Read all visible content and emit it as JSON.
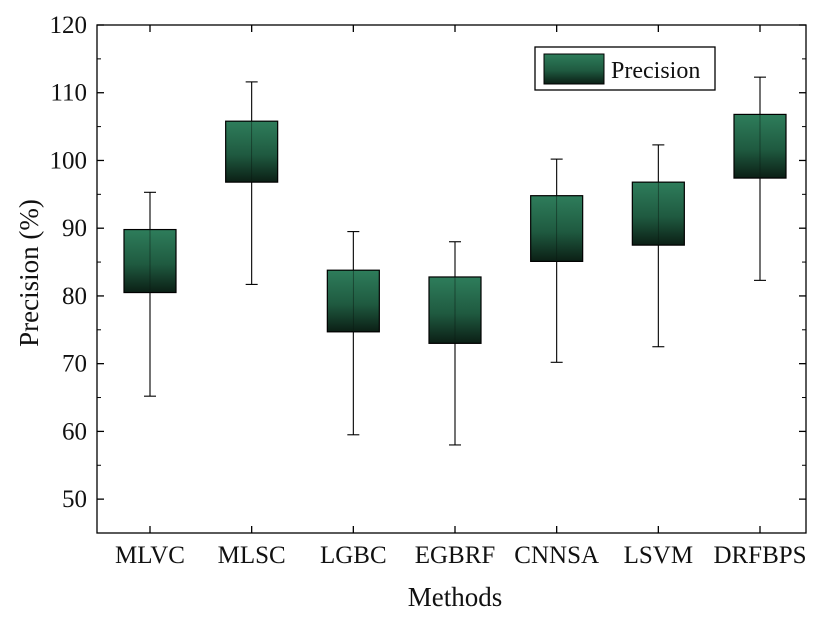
{
  "chart_data": {
    "type": "box",
    "xlabel": "Methods",
    "ylabel": "Precision (%)",
    "ylim": [
      45,
      120
    ],
    "yticks": [
      50,
      60,
      70,
      80,
      90,
      100,
      110,
      120
    ],
    "categories": [
      "MLVC",
      "MLSC",
      "LGBC",
      "EGBRF",
      "CNNSA",
      "LSVM",
      "DRFBPS"
    ],
    "series": [
      {
        "name": "Precision",
        "color_top": "#2e7d5b",
        "color_bottom": "#0b1f15",
        "boxes": [
          {
            "category": "MLVC",
            "whisker_low": 65.2,
            "box_low": 80.5,
            "box_high": 89.8,
            "whisker_high": 95.3
          },
          {
            "category": "MLSC",
            "whisker_low": 81.7,
            "box_low": 96.8,
            "box_high": 105.8,
            "whisker_high": 111.6
          },
          {
            "category": "LGBC",
            "whisker_low": 59.5,
            "box_low": 74.7,
            "box_high": 83.8,
            "whisker_high": 89.5
          },
          {
            "category": "EGBRF",
            "whisker_low": 58.0,
            "box_low": 73.0,
            "box_high": 82.8,
            "whisker_high": 88.0
          },
          {
            "category": "CNNSA",
            "whisker_low": 70.2,
            "box_low": 85.1,
            "box_high": 94.8,
            "whisker_high": 100.2
          },
          {
            "category": "LSVM",
            "whisker_low": 72.5,
            "box_low": 87.5,
            "box_high": 96.8,
            "whisker_high": 102.3
          },
          {
            "category": "DRFBPS",
            "whisker_low": 82.3,
            "box_low": 97.4,
            "box_high": 106.8,
            "whisker_high": 112.3
          }
        ]
      }
    ],
    "legend": {
      "placement": "top-right",
      "entries": [
        "Precision"
      ]
    },
    "grid": false
  }
}
